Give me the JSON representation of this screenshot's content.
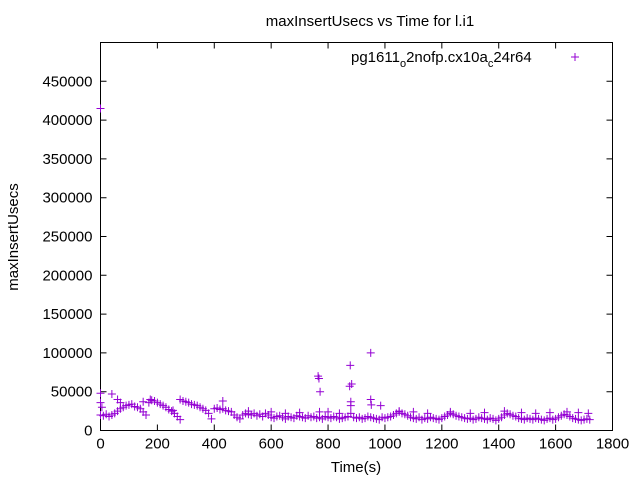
{
  "chart_data": {
    "type": "scatter",
    "title": "maxInsertUsecs vs Time for l.i1",
    "xlabel": "Time(s)",
    "ylabel": "maxInsertUsecs",
    "xlim": [
      0,
      1800
    ],
    "ylim": [
      0,
      500000
    ],
    "xticks": [
      0,
      200,
      400,
      600,
      800,
      1000,
      1200,
      1400,
      1600,
      1800
    ],
    "yticks": [
      0,
      50000,
      100000,
      150000,
      200000,
      250000,
      300000,
      350000,
      400000,
      450000
    ],
    "grid": false,
    "legend": {
      "position": "top-right",
      "parts": [
        "pg1611",
        "o",
        "2nofp.cx10a",
        "c",
        "24r64"
      ]
    },
    "series": [
      {
        "name": "pg1611_o2nofp.cx10a_c24r64",
        "color": "#9400d3",
        "marker": "+",
        "x_start": 0,
        "x_step": 10,
        "y": [
          20000,
          19000,
          21000,
          18000,
          20000,
          22000,
          25000,
          28000,
          30000,
          32000,
          33000,
          34000,
          31000,
          30000,
          28000,
          24000,
          20000,
          36000,
          39000,
          38000,
          36000,
          34000,
          32000,
          30000,
          27000,
          25000,
          22000,
          18000,
          14000,
          38000,
          37000,
          36000,
          34000,
          33000,
          32000,
          30000,
          28000,
          26000,
          22000,
          15000,
          28000,
          29000,
          27000,
          28000,
          26000,
          25000,
          24000,
          20000,
          17000,
          15000,
          20000,
          22000,
          21000,
          20000,
          22000,
          19000,
          21000,
          18000,
          22000,
          20000,
          17000,
          16000,
          18000,
          19000,
          17000,
          15000,
          18000,
          17000,
          16000,
          19000,
          18000,
          17000,
          16000,
          19000,
          17000,
          18000,
          16000,
          17000,
          15000,
          18000,
          17000,
          16000,
          18000,
          17000,
          15000,
          16000,
          17000,
          18000,
          22000,
          17000,
          16000,
          17000,
          15000,
          16000,
          18000,
          17000,
          16000,
          15000,
          14000,
          17000,
          16000,
          17000,
          18000,
          20000,
          22000,
          24000,
          22000,
          21000,
          19000,
          17000,
          16000,
          15000,
          17000,
          14000,
          16000,
          15000,
          17000,
          16000,
          15000,
          14000,
          16000,
          18000,
          20000,
          22000,
          21000,
          19000,
          18000,
          17000,
          16000,
          15000,
          16000,
          14000,
          15000,
          17000,
          16000,
          15000,
          14000,
          16000,
          15000,
          13000,
          15000,
          17000,
          20000,
          22000,
          21000,
          19000,
          18000,
          16000,
          15000,
          14000,
          16000,
          15000,
          14000,
          16000,
          15000,
          14000,
          13000,
          15000,
          16000,
          14000,
          15000,
          17000,
          19000,
          21000,
          20000,
          18000,
          16000,
          15000,
          14000,
          13000,
          14000,
          15000,
          14000
        ],
        "extra_points": [
          [
            0,
            415000
          ],
          [
            0,
            48000
          ],
          [
            0,
            36000
          ],
          [
            5,
            30000
          ],
          [
            40,
            47000
          ],
          [
            60,
            40000
          ],
          [
            70,
            36000
          ],
          [
            150,
            37000
          ],
          [
            175,
            40000
          ],
          [
            255,
            26000
          ],
          [
            280,
            40000
          ],
          [
            430,
            38000
          ],
          [
            520,
            25000
          ],
          [
            600,
            24000
          ],
          [
            650,
            22000
          ],
          [
            700,
            23000
          ],
          [
            765,
            70000
          ],
          [
            768,
            67000
          ],
          [
            772,
            50000
          ],
          [
            770,
            24000
          ],
          [
            800,
            24000
          ],
          [
            840,
            22000
          ],
          [
            878,
            84000
          ],
          [
            876,
            57000
          ],
          [
            883,
            60000
          ],
          [
            880,
            37000
          ],
          [
            880,
            32000
          ],
          [
            950,
            100000
          ],
          [
            950,
            40000
          ],
          [
            952,
            33000
          ],
          [
            985,
            32000
          ],
          [
            1050,
            25000
          ],
          [
            1100,
            24000
          ],
          [
            1150,
            22000
          ],
          [
            1230,
            24000
          ],
          [
            1300,
            22000
          ],
          [
            1350,
            23000
          ],
          [
            1420,
            25000
          ],
          [
            1480,
            23000
          ],
          [
            1530,
            22000
          ],
          [
            1580,
            23000
          ],
          [
            1640,
            24000
          ],
          [
            1680,
            23000
          ],
          [
            1715,
            22000
          ]
        ]
      }
    ]
  }
}
